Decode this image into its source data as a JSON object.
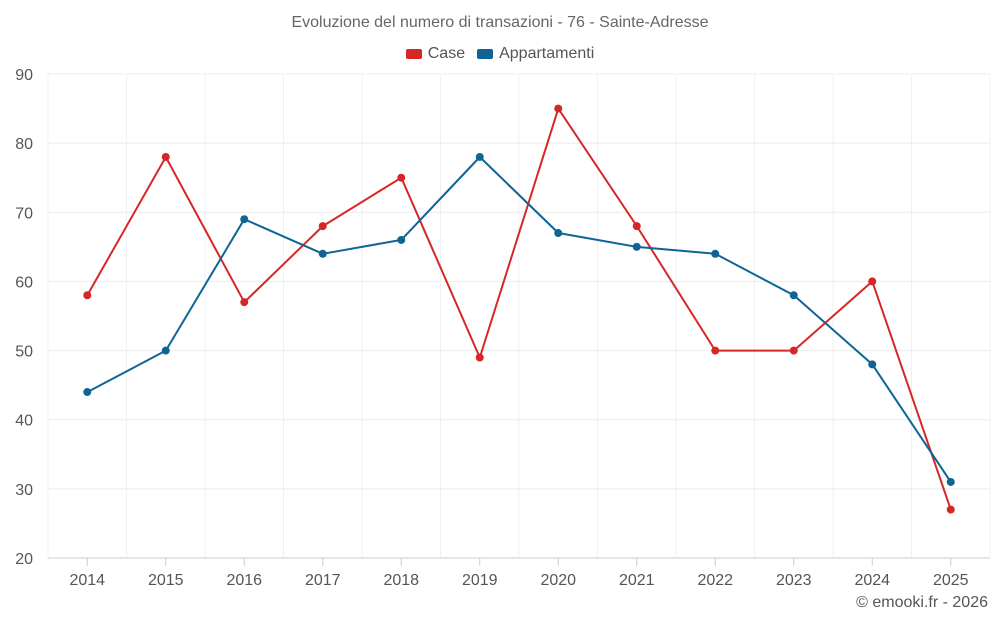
{
  "chart_data": {
    "type": "line",
    "title": "Evoluzione del numero di transazioni - 76 - Sainte-Adresse",
    "x": [
      "2014",
      "2015",
      "2016",
      "2017",
      "2018",
      "2019",
      "2020",
      "2021",
      "2022",
      "2023",
      "2024",
      "2025"
    ],
    "series": [
      {
        "name": "Case",
        "color": "#d62728",
        "values": [
          58,
          78,
          57,
          68,
          75,
          49,
          85,
          68,
          50,
          50,
          60,
          27
        ]
      },
      {
        "name": "Appartamenti",
        "color": "#0f6496",
        "values": [
          44,
          50,
          69,
          64,
          66,
          78,
          67,
          65,
          64,
          58,
          48,
          31
        ]
      }
    ],
    "ylim": [
      20,
      90
    ],
    "yticks": [
      20,
      30,
      40,
      50,
      60,
      70,
      80,
      90
    ],
    "grid": true,
    "legend_position": "top-center",
    "xlabel": "",
    "ylabel": ""
  },
  "credit": "© emooki.fr - 2026"
}
